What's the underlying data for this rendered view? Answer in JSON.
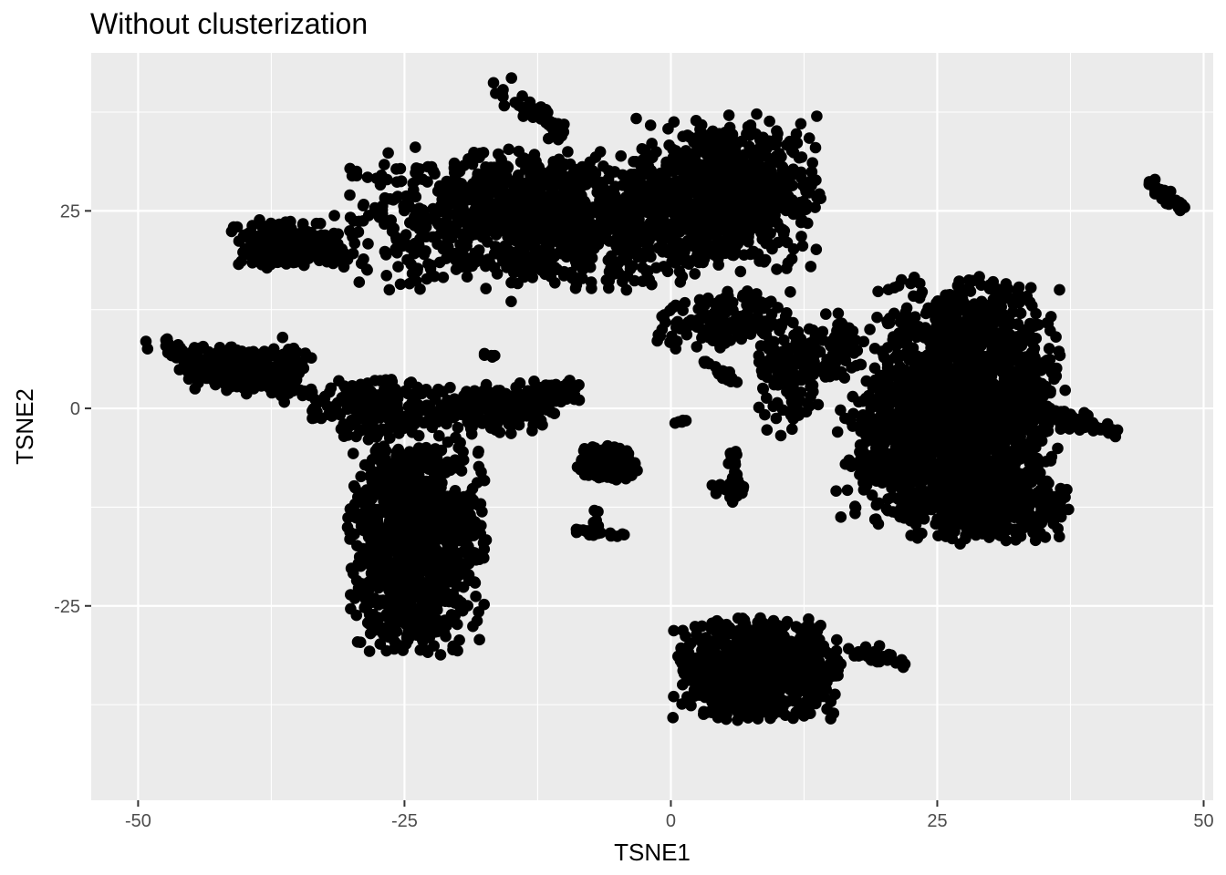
{
  "chart_data": {
    "type": "scatter",
    "title": "Without clusterization",
    "xlabel": "TSNE1",
    "ylabel": "TSNE2",
    "xlim": [
      -54.4,
      50.9
    ],
    "ylim": [
      -49.6,
      45.0
    ],
    "x_major_ticks": [
      -50,
      -25,
      0,
      25,
      50
    ],
    "x_tick_labels": [
      "-50",
      "-25",
      "0",
      "25",
      "50"
    ],
    "x_minor_ticks": [
      -37.5,
      -12.5,
      12.5,
      37.5
    ],
    "y_major_ticks": [
      -25,
      0,
      25
    ],
    "y_tick_labels": [
      "-25",
      "0",
      "25"
    ],
    "y_minor_ticks": [
      -37.5,
      -12.5,
      12.5,
      37.5
    ],
    "grid": true,
    "legend": "none",
    "colors": {
      "panel": "#ebebeb",
      "grid": "#ffffff",
      "points": "#000000",
      "tick_text": "#4d4d4d",
      "tick_mark": "#333333"
    },
    "point_description": "Dense point cloud; values below are representative cluster region samples read off the axes",
    "clusters": [
      {
        "cx": -12,
        "cy": 24,
        "sx": 14,
        "sy": 7,
        "n": 1100
      },
      {
        "cx": 5,
        "cy": 27,
        "sx": 7,
        "sy": 8,
        "n": 700
      },
      {
        "cx": -36,
        "cy": 21,
        "sx": 4,
        "sy": 2.5,
        "n": 180
      },
      {
        "cx": 28,
        "cy": 2,
        "sx": 7,
        "sy": 11,
        "n": 1500
      },
      {
        "cx": 22,
        "cy": -5,
        "sx": 5,
        "sy": 8,
        "n": 350
      },
      {
        "cx": 8,
        "cy": -33,
        "sx": 6,
        "sy": 5,
        "n": 900
      },
      {
        "cx": -24,
        "cy": -17,
        "sx": 5,
        "sy": 11,
        "n": 1000
      },
      {
        "cx": -40,
        "cy": 5,
        "sx": 5,
        "sy": 2.5,
        "n": 220
      },
      {
        "cx": -28,
        "cy": 0,
        "sx": 5,
        "sy": 3,
        "n": 200
      },
      {
        "cx": -17,
        "cy": 0,
        "sx": 5,
        "sy": 2.5,
        "n": 180
      },
      {
        "cx": -6,
        "cy": -7,
        "sx": 2.3,
        "sy": 1.8,
        "n": 160
      },
      {
        "cx": -11,
        "cy": 2,
        "sx": 2,
        "sy": 1.2,
        "n": 70
      },
      {
        "cx": 11,
        "cy": 3,
        "sx": 2.5,
        "sy": 5,
        "n": 90
      },
      {
        "cx": 15,
        "cy": 7,
        "sx": 3,
        "sy": 4,
        "n": 80
      },
      {
        "cx": 5,
        "cy": 11,
        "sx": 5,
        "sy": 3,
        "n": 160
      },
      {
        "cx": 30,
        "cy": -12,
        "sx": 6,
        "sy": 4,
        "n": 400
      }
    ],
    "line_segments": [
      {
        "x1": -48,
        "y1": 8,
        "x2": -35,
        "y2": 2,
        "n": 120,
        "jitter": 1.3
      },
      {
        "x1": -40,
        "y1": 22,
        "x2": -30,
        "y2": 19,
        "n": 90,
        "jitter": 1.5
      },
      {
        "x1": -16,
        "y1": 40,
        "x2": -10,
        "y2": 35,
        "n": 40,
        "jitter": 1.2
      },
      {
        "x1": 45,
        "y1": 28.5,
        "x2": 48,
        "y2": 25,
        "n": 35,
        "jitter": 0.6
      },
      {
        "x1": 6,
        "y1": -5,
        "x2": 6,
        "y2": -12,
        "n": 25,
        "jitter": 0.6
      },
      {
        "x1": 4,
        "y1": -10,
        "x2": 7,
        "y2": -10,
        "n": 15,
        "jitter": 0.5
      },
      {
        "x1": 0,
        "y1": -1.7,
        "x2": 1.5,
        "y2": -1.7,
        "n": 6,
        "jitter": 0.2
      },
      {
        "x1": -9.5,
        "y1": -15.5,
        "x2": -4,
        "y2": -16,
        "n": 18,
        "jitter": 0.4
      },
      {
        "x1": -7,
        "y1": -13,
        "x2": -7,
        "y2": -16,
        "n": 6,
        "jitter": 0.3
      },
      {
        "x1": 3,
        "y1": 6,
        "x2": 6,
        "y2": 3.5,
        "n": 20,
        "jitter": 0.5
      },
      {
        "x1": 36,
        "y1": -1,
        "x2": 42,
        "y2": -3,
        "n": 40,
        "jitter": 1.0
      },
      {
        "x1": 17,
        "y1": -31,
        "x2": 22,
        "y2": -32,
        "n": 25,
        "jitter": 0.8
      },
      {
        "x1": -18,
        "y1": 7,
        "x2": -16,
        "y2": 6.5,
        "n": 5,
        "jitter": 0.2
      }
    ]
  }
}
